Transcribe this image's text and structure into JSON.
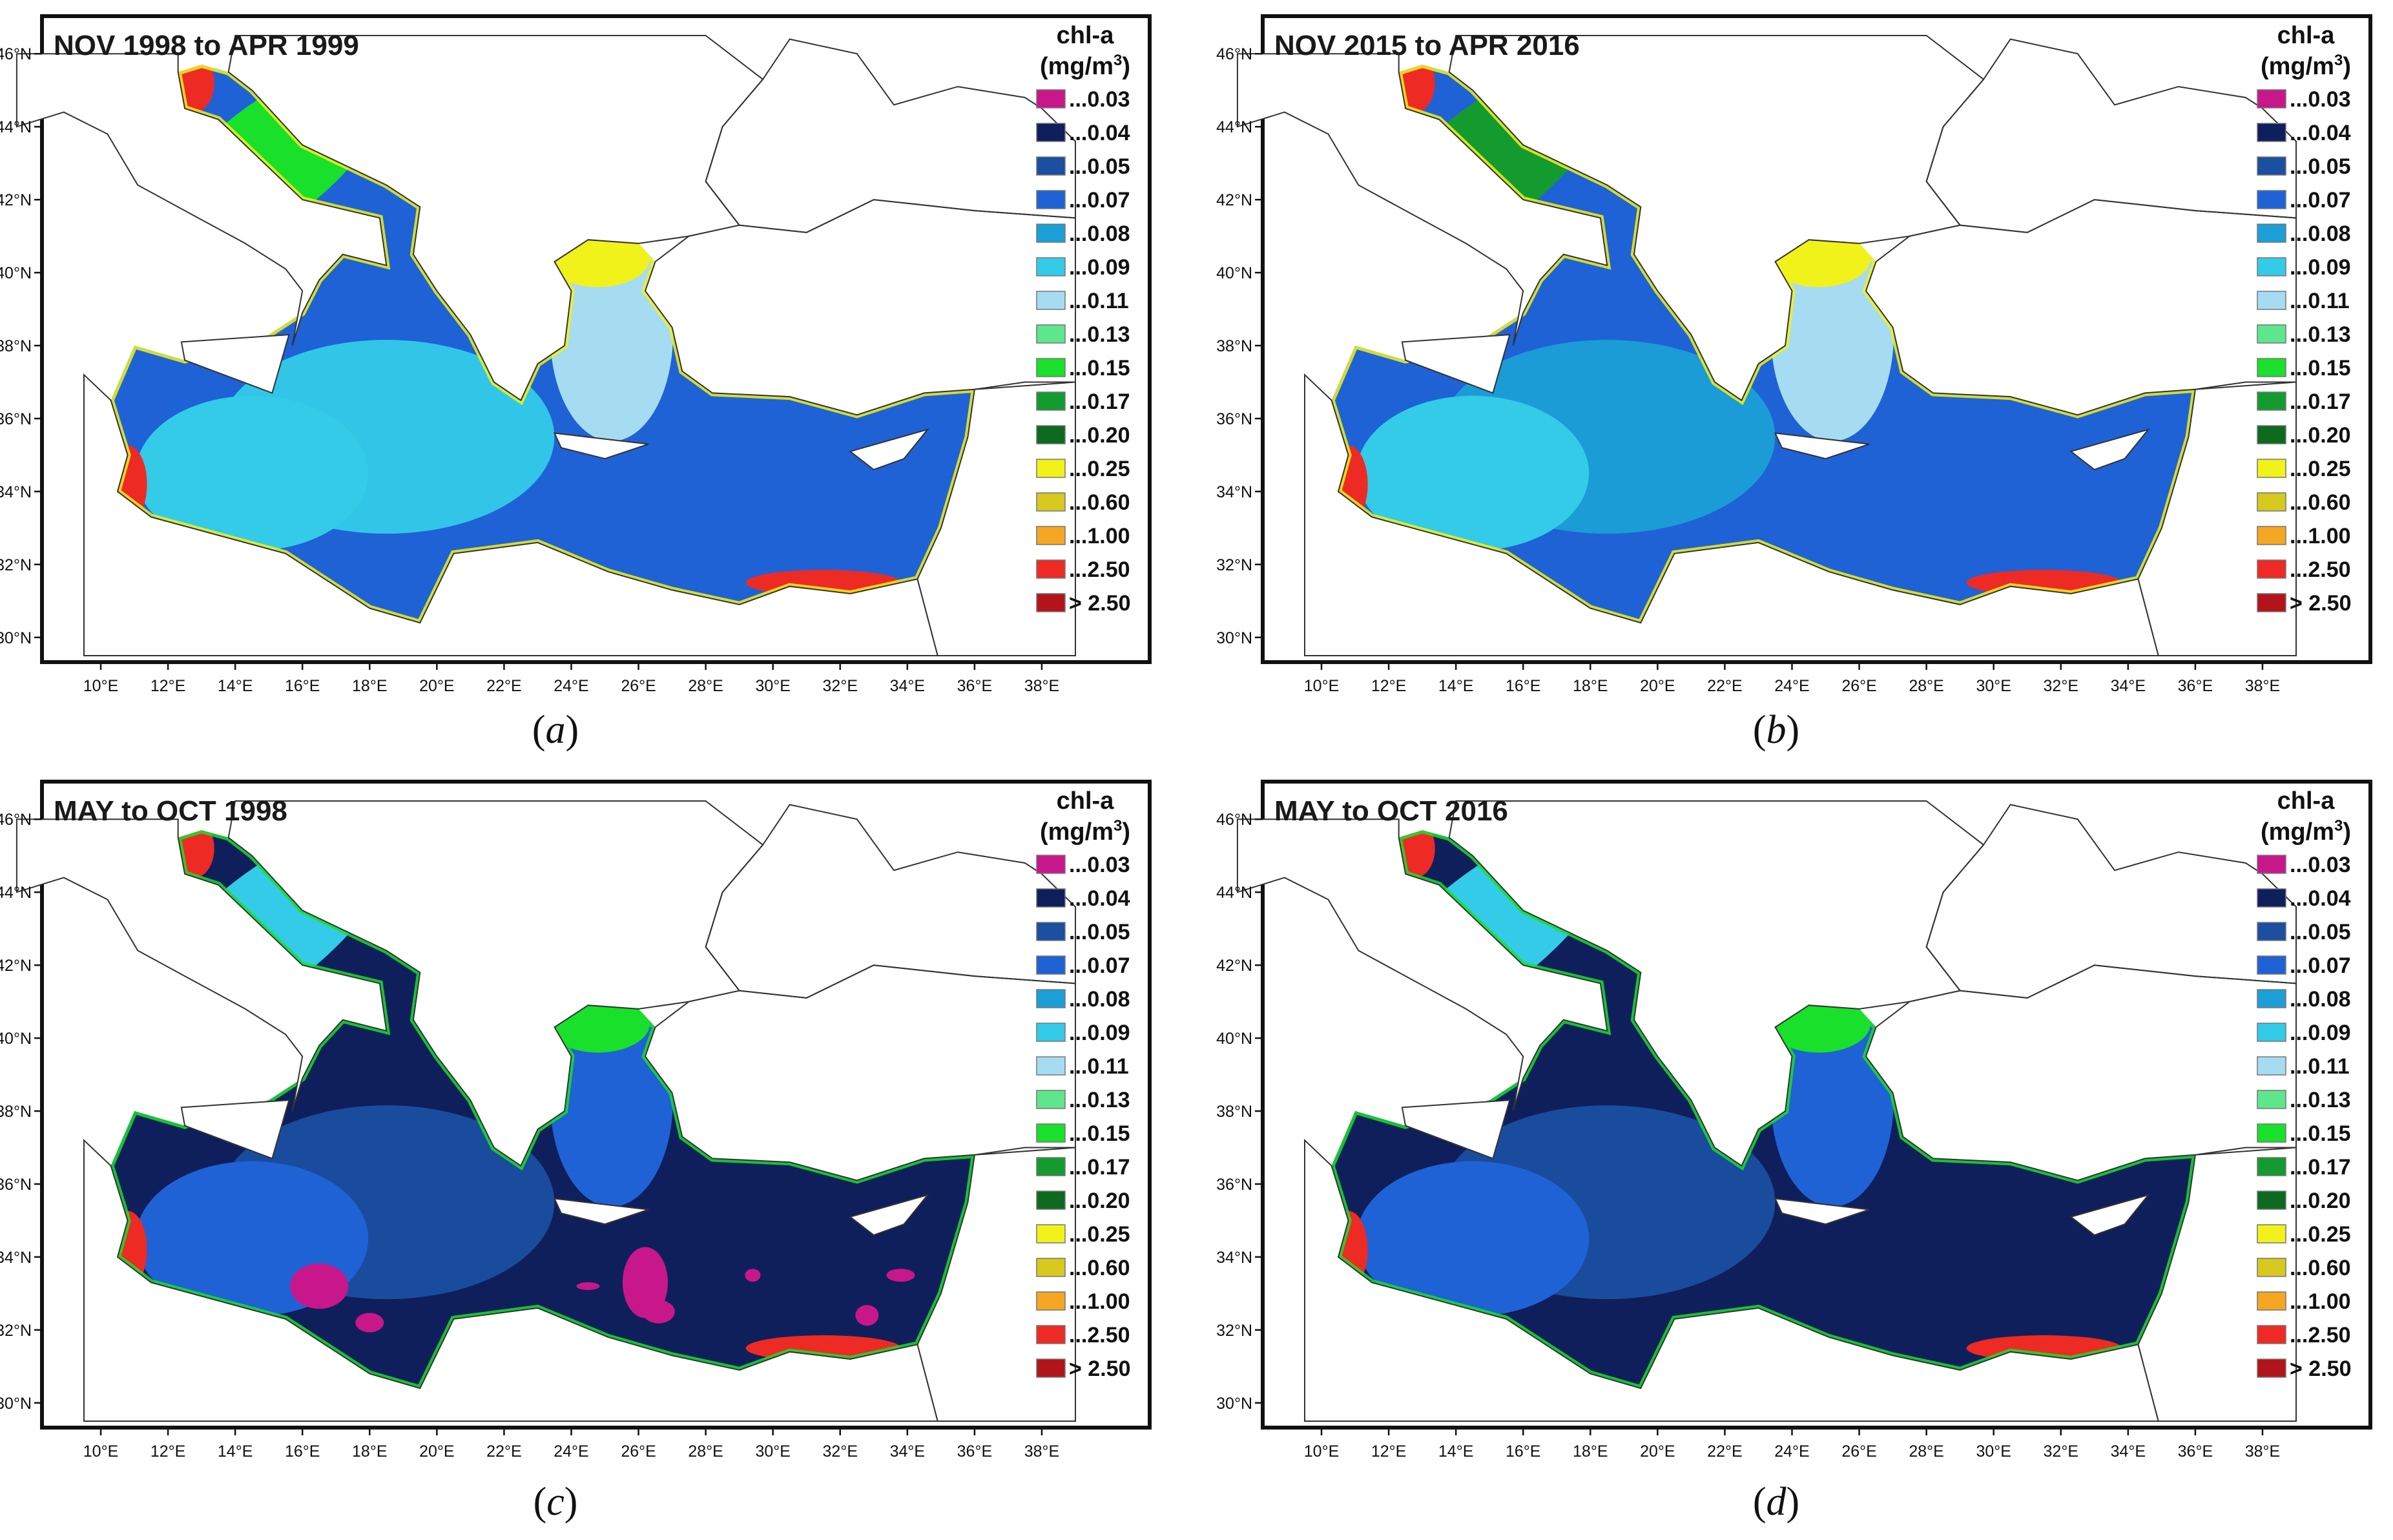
{
  "figure": {
    "legend_title": "chl-a",
    "legend_unit": "(mg/m",
    "legend_unit_sup": "3",
    "legend_unit_close": ")",
    "legend": [
      {
        "label": "...0.03",
        "color": "#c8178b"
      },
      {
        "label": "...0.04",
        "color": "#0f1f5c"
      },
      {
        "label": "...0.05",
        "color": "#1b4fa0"
      },
      {
        "label": "...0.07",
        "color": "#1f62d6"
      },
      {
        "label": "...0.08",
        "color": "#1b9fd6"
      },
      {
        "label": "...0.09",
        "color": "#33cbe8"
      },
      {
        "label": "...0.11",
        "color": "#a6dcf2"
      },
      {
        "label": "...0.13",
        "color": "#5ee68c"
      },
      {
        "label": "...0.15",
        "color": "#19e02a"
      },
      {
        "label": "...0.17",
        "color": "#149b2f"
      },
      {
        "label": "...0.20",
        "color": "#0e6a1f"
      },
      {
        "label": "...0.25",
        "color": "#f2f21b"
      },
      {
        "label": "...0.60",
        "color": "#d7c91e"
      },
      {
        "label": "...1.00",
        "color": "#f5a623"
      },
      {
        "label": "...2.50",
        "color": "#ee2a24"
      },
      {
        "label": "> 2.50",
        "color": "#b3141c"
      }
    ],
    "lat_labels": [
      "46°N",
      "44°N",
      "42°N",
      "40°N",
      "38°N",
      "36°N",
      "34°N",
      "32°N",
      "30°N"
    ],
    "lon_labels": [
      "10°E",
      "12°E",
      "14°E",
      "16°E",
      "18°E",
      "20°E",
      "22°E",
      "24°E",
      "26°E",
      "28°E",
      "30°E",
      "32°E",
      "34°E",
      "36°E",
      "38°E"
    ]
  },
  "panels": [
    {
      "id": "a",
      "title": "NOV 1998 to APR 1999",
      "caption_letter": "a",
      "open_sea": "#1f62d6",
      "west": "#33cbe8",
      "central": "#33cbe8",
      "aegean": "#a6dcf2",
      "north": "#19e02a",
      "coastal": "#f2f21b",
      "hotspots": false
    },
    {
      "id": "b",
      "title": "NOV 2015 to APR 2016",
      "caption_letter": "b",
      "open_sea": "#1f62d6",
      "west": "#33cbe8",
      "central": "#1b9fd6",
      "aegean": "#a6dcf2",
      "north": "#149b2f",
      "coastal": "#f2f21b",
      "hotspots": false
    },
    {
      "id": "c",
      "title": "MAY to OCT 1998",
      "caption_letter": "c",
      "open_sea": "#0f1f5c",
      "west": "#1f62d6",
      "central": "#1b4fa0",
      "aegean": "#1f62d6",
      "north": "#33cbe8",
      "coastal": "#19e02a",
      "hotspots": true
    },
    {
      "id": "d",
      "title": "MAY to OCT 2016",
      "caption_letter": "d",
      "open_sea": "#0f1f5c",
      "west": "#1f62d6",
      "central": "#1b4fa0",
      "aegean": "#1f62d6",
      "north": "#33cbe8",
      "coastal": "#19e02a",
      "hotspots": false
    }
  ]
}
